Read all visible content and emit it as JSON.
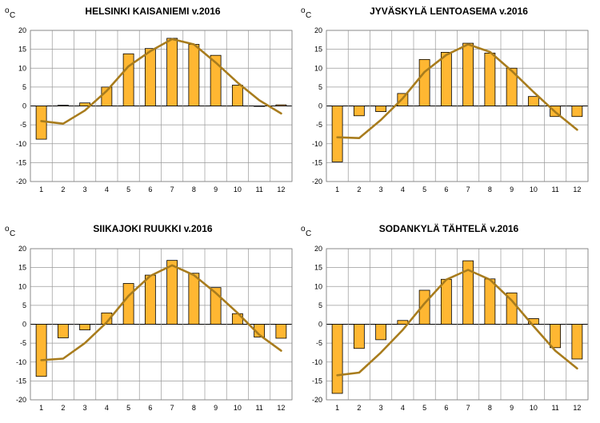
{
  "chart_data": [
    {
      "type": "bar",
      "title": "HELSINKI KAISANIEMI v.2016",
      "ylabel_sup": "o",
      "ylabel": "C",
      "ylim": [
        -20,
        20
      ],
      "yticks": [
        "-20",
        "-15",
        "-10",
        "-5",
        "0",
        "5",
        "10",
        "15",
        "20"
      ],
      "categories": [
        "1",
        "2",
        "3",
        "4",
        "5",
        "6",
        "7",
        "8",
        "9",
        "10",
        "11",
        "12"
      ],
      "series": [
        {
          "kind": "bar",
          "values": [
            -8.8,
            0.2,
            0.8,
            5.0,
            13.8,
            15.2,
            17.9,
            16.3,
            13.4,
            5.5,
            0.0,
            0.3
          ]
        },
        {
          "kind": "line",
          "values": [
            -4.0,
            -4.7,
            -1.2,
            4.0,
            10.5,
            14.5,
            17.7,
            16.3,
            11.5,
            6.2,
            1.5,
            -2.0
          ]
        }
      ],
      "grid": true,
      "bar_color": "#FFB732",
      "line_color": "#A87C1D"
    },
    {
      "type": "bar",
      "title": "JYVÄSKYLÄ LENTOASEMA v.2016",
      "ylabel_sup": "o",
      "ylabel": "C",
      "ylim": [
        -20,
        20
      ],
      "yticks": [
        "-20",
        "-15",
        "-10",
        "-5",
        "0",
        "5",
        "10",
        "15",
        "20"
      ],
      "categories": [
        "1",
        "2",
        "3",
        "4",
        "5",
        "6",
        "7",
        "8",
        "9",
        "10",
        "11",
        "12"
      ],
      "series": [
        {
          "kind": "bar",
          "values": [
            -14.8,
            -2.6,
            -1.5,
            3.3,
            12.3,
            14.2,
            16.6,
            14.0,
            10.0,
            2.5,
            -2.8,
            -2.8
          ]
        },
        {
          "kind": "line",
          "values": [
            -8.3,
            -8.5,
            -3.7,
            2.0,
            9.0,
            13.5,
            16.3,
            14.3,
            9.3,
            3.7,
            -1.6,
            -6.3
          ]
        }
      ],
      "grid": true,
      "bar_color": "#FFB732",
      "line_color": "#A87C1D"
    },
    {
      "type": "bar",
      "title": "SIIKAJOKI RUUKKI v.2016",
      "ylabel_sup": "o",
      "ylabel": "C",
      "ylim": [
        -20,
        20
      ],
      "yticks": [
        "-20",
        "-15",
        "-10",
        "-5",
        "0",
        "5",
        "10",
        "15",
        "20"
      ],
      "categories": [
        "1",
        "2",
        "3",
        "4",
        "5",
        "6",
        "7",
        "8",
        "9",
        "10",
        "11",
        "12"
      ],
      "series": [
        {
          "kind": "bar",
          "values": [
            -13.8,
            -3.6,
            -1.5,
            3.0,
            10.8,
            13.0,
            16.9,
            13.5,
            9.7,
            2.8,
            -3.4,
            -3.7
          ]
        },
        {
          "kind": "line",
          "values": [
            -9.5,
            -9.1,
            -5.0,
            0.5,
            7.5,
            12.8,
            15.6,
            13.0,
            8.3,
            3.0,
            -2.8,
            -7.0
          ]
        }
      ],
      "grid": true,
      "bar_color": "#FFB732",
      "line_color": "#A87C1D"
    },
    {
      "type": "bar",
      "title": "SODANKYLÄ TÄHTELÄ v.2016",
      "ylabel_sup": "o",
      "ylabel": "C",
      "ylim": [
        -20,
        20
      ],
      "yticks": [
        "-20",
        "-15",
        "-10",
        "-5",
        "0",
        "5",
        "10",
        "15",
        "20"
      ],
      "categories": [
        "1",
        "2",
        "3",
        "4",
        "5",
        "6",
        "7",
        "8",
        "9",
        "10",
        "11",
        "12"
      ],
      "series": [
        {
          "kind": "bar",
          "values": [
            -18.3,
            -6.4,
            -4.1,
            1.0,
            9.0,
            11.9,
            16.8,
            12.0,
            8.3,
            1.5,
            -6.2,
            -9.2
          ]
        },
        {
          "kind": "line",
          "values": [
            -13.5,
            -12.8,
            -7.5,
            -1.5,
            5.5,
            11.8,
            14.4,
            11.8,
            6.3,
            -0.5,
            -7.0,
            -11.7
          ]
        }
      ],
      "grid": true,
      "bar_color": "#FFB732",
      "line_color": "#A87C1D"
    }
  ]
}
